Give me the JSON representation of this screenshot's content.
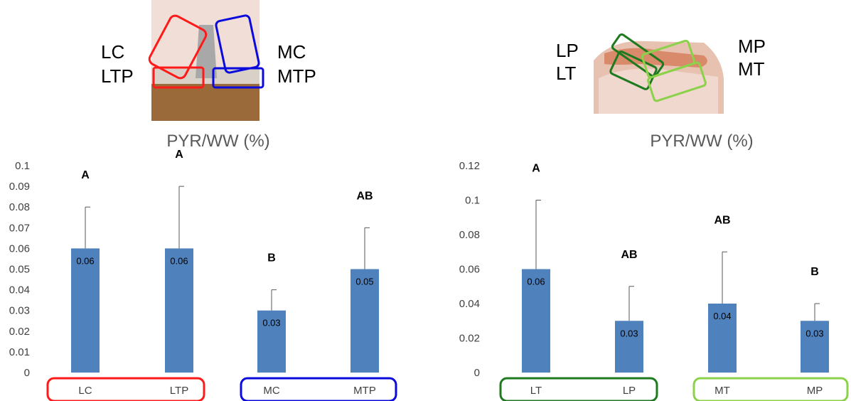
{
  "colors": {
    "bar": "#4f81bd",
    "red_box": "#ff1a1a",
    "blue_box": "#0a0adc",
    "dark_green_box": "#1e7a1e",
    "light_green_box": "#8bd14a",
    "text": "#404040"
  },
  "knee_front": {
    "labels": [
      "LC",
      "LTP",
      "MC",
      "MTP"
    ]
  },
  "knee_side": {
    "labels": [
      "LP",
      "LT",
      "MP",
      "MT"
    ]
  },
  "chart_data": [
    {
      "type": "bar",
      "title": "PYR/WW (%)",
      "categories": [
        "LC",
        "LTP",
        "MC",
        "MTP"
      ],
      "values": [
        0.06,
        0.06,
        0.03,
        0.05
      ],
      "error_upper": [
        0.08,
        0.09,
        0.04,
        0.07
      ],
      "data_labels": [
        "0.06",
        "0.06",
        "0.03",
        "0.05"
      ],
      "significance": [
        "A",
        "A",
        "B",
        "AB"
      ],
      "ylim": [
        0,
        0.1
      ],
      "yticks": [
        "0",
        "0.01",
        "0.02",
        "0.03",
        "0.04",
        "0.05",
        "0.06",
        "0.07",
        "0.08",
        "0.09",
        "0.1"
      ],
      "groups": [
        {
          "color": "#ff1a1a",
          "categories": [
            "LC",
            "LTP"
          ]
        },
        {
          "color": "#0a0adc",
          "categories": [
            "MC",
            "MTP"
          ]
        }
      ],
      "grid": false
    },
    {
      "type": "bar",
      "title": "PYR/WW (%)",
      "categories": [
        "LT",
        "LP",
        "MT",
        "MP"
      ],
      "values": [
        0.06,
        0.03,
        0.04,
        0.03
      ],
      "error_upper": [
        0.1,
        0.05,
        0.07,
        0.04
      ],
      "data_labels": [
        "0.06",
        "0.03",
        "0.04",
        "0.03"
      ],
      "significance": [
        "A",
        "AB",
        "AB",
        "B"
      ],
      "ylim": [
        0,
        0.12
      ],
      "yticks": [
        "0",
        "0.02",
        "0.04",
        "0.06",
        "0.08",
        "0.1",
        "0.12"
      ],
      "groups": [
        {
          "color": "#1e7a1e",
          "categories": [
            "LT",
            "LP"
          ]
        },
        {
          "color": "#8bd14a",
          "categories": [
            "MT",
            "MP"
          ]
        }
      ],
      "grid": false
    }
  ]
}
